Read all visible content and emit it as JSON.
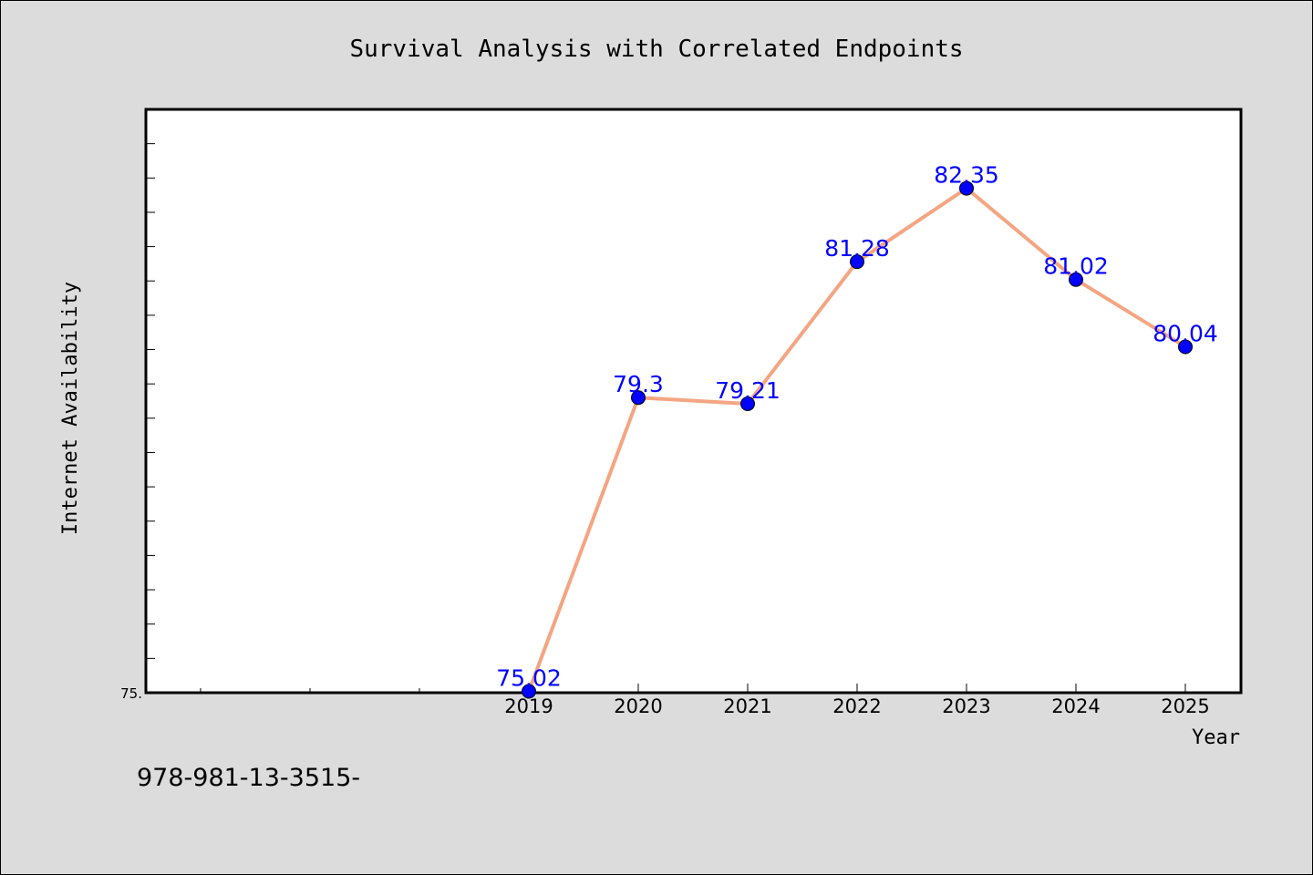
{
  "chart_data": {
    "type": "line",
    "title": "Survival Analysis with Correlated Endpoints",
    "xlabel": "Year",
    "ylabel": "Internet Availability",
    "categories": [
      "2019",
      "2020",
      "2021",
      "2022",
      "2023",
      "2024",
      "2025"
    ],
    "series": [
      {
        "values": [
          75.02,
          79.3,
          79.21,
          81.28,
          82.35,
          81.02,
          80.04
        ],
        "labels": [
          "75.02",
          "79.3",
          "79.21",
          "81.28",
          "82.35",
          "81.02",
          "80.04"
        ],
        "line_color": "#f4a582",
        "marker_color": "#0000ff",
        "label_color": "#0000ff"
      }
    ],
    "ylim": [
      75.0,
      83.5
    ],
    "y_tick_label": "75.",
    "grid": false,
    "legend": "none"
  },
  "footer": {
    "code": "978-981-13-3515-"
  },
  "colors": {
    "background": "#dcdcdc",
    "plot_background": "#ffffff",
    "line": "#f4a582",
    "marker": "#0000ff",
    "data_label": "#0000ff"
  }
}
